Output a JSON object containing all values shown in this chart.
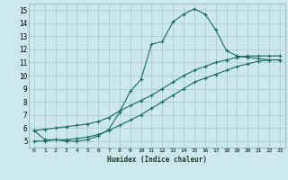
{
  "xlabel": "Humidex (Indice chaleur)",
  "bg_color": "#cce8ed",
  "grid_color": "#aacdd6",
  "line_color": "#1a6b5a",
  "xlim": [
    -0.5,
    23.5
  ],
  "ylim": [
    4.5,
    15.5
  ],
  "yticks": [
    5,
    6,
    7,
    8,
    9,
    10,
    11,
    12,
    13,
    14,
    15
  ],
  "xticks": [
    0,
    1,
    2,
    3,
    4,
    5,
    6,
    7,
    8,
    9,
    10,
    11,
    12,
    13,
    14,
    15,
    16,
    17,
    18,
    19,
    20,
    21,
    22,
    23
  ],
  "xtick_labels": [
    "0",
    "1",
    "2",
    "3",
    "4",
    "5",
    "6",
    "7",
    "8",
    "9",
    "10",
    "11",
    "12",
    "13",
    "14",
    "15",
    "16",
    "17",
    "18",
    "19",
    "20",
    "21",
    "22",
    "23"
  ],
  "line1_x": [
    0,
    1,
    2,
    3,
    4,
    5,
    6,
    7,
    8,
    9,
    10,
    11,
    12,
    13,
    14,
    15,
    16,
    17,
    18,
    19,
    20,
    21,
    22,
    23
  ],
  "line1_y": [
    5.8,
    5.1,
    5.1,
    5.0,
    5.0,
    5.1,
    5.4,
    5.9,
    7.2,
    8.8,
    9.7,
    12.4,
    12.6,
    14.1,
    14.7,
    15.1,
    14.7,
    13.5,
    11.9,
    11.5,
    11.4,
    11.3,
    11.2,
    11.2
  ],
  "line2_x": [
    0,
    1,
    2,
    3,
    4,
    5,
    6,
    7,
    8,
    9,
    10,
    11,
    12,
    13,
    14,
    15,
    16,
    17,
    18,
    19,
    20,
    21,
    22,
    23
  ],
  "line2_y": [
    5.8,
    5.9,
    6.0,
    6.1,
    6.2,
    6.3,
    6.5,
    6.8,
    7.3,
    7.7,
    8.1,
    8.5,
    9.0,
    9.5,
    10.0,
    10.4,
    10.7,
    11.0,
    11.2,
    11.4,
    11.5,
    11.5,
    11.5,
    11.5
  ],
  "line3_x": [
    0,
    1,
    2,
    3,
    4,
    5,
    6,
    7,
    8,
    9,
    10,
    11,
    12,
    13,
    14,
    15,
    16,
    17,
    18,
    19,
    20,
    21,
    22,
    23
  ],
  "line3_y": [
    5.0,
    5.0,
    5.1,
    5.1,
    5.2,
    5.3,
    5.5,
    5.8,
    6.2,
    6.6,
    7.0,
    7.5,
    8.0,
    8.5,
    9.0,
    9.5,
    9.8,
    10.1,
    10.4,
    10.7,
    10.9,
    11.1,
    11.2,
    11.2
  ]
}
